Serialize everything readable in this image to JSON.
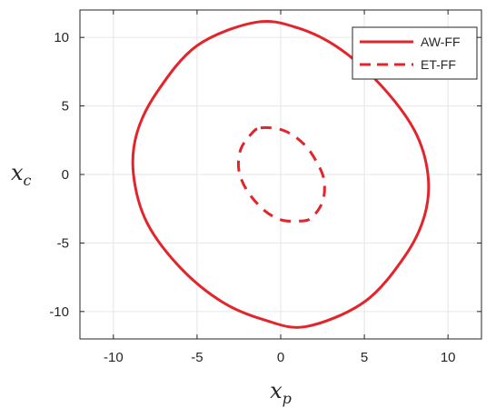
{
  "chart_data": {
    "type": "line",
    "title": "",
    "xlabel": "x",
    "xlabel_sub": "p",
    "ylabel": "x",
    "ylabel_sub": "c",
    "xlim": [
      -12,
      12
    ],
    "ylim": [
      -12,
      12
    ],
    "xticks": [
      -10,
      -5,
      0,
      5,
      10
    ],
    "xtick_labels": [
      "-10",
      "-5",
      "0",
      "5",
      "10"
    ],
    "yticks": [
      -10,
      -5,
      0,
      5,
      10
    ],
    "ytick_labels": [
      "-10",
      "-5",
      "0",
      "5",
      "10"
    ],
    "grid": true,
    "legend_position": "top-right",
    "series": [
      {
        "name": "AW-FF",
        "style": "solid",
        "color": "#e3242b",
        "x": [
          -1.5,
          1.0,
          3.5,
          6.0,
          8.0,
          8.8,
          8.6,
          7.4,
          5.0,
          1.5,
          -1.0,
          -3.5,
          -6.0,
          -8.0,
          -8.8,
          -8.6,
          -7.4,
          -5.0,
          -1.5
        ],
        "y": [
          11.1,
          10.7,
          9.2,
          6.5,
          3.2,
          0.0,
          -3.0,
          -6.0,
          -9.3,
          -11.1,
          -10.6,
          -9.3,
          -6.8,
          -3.5,
          0.0,
          3.0,
          6.0,
          9.4,
          11.1
        ]
      },
      {
        "name": "ET-FF",
        "style": "dashed",
        "color": "#e3242b",
        "x": [
          -1.2,
          0.2,
          1.4,
          2.2,
          2.6,
          2.5,
          1.8,
          1.0,
          0.0,
          -1.0,
          -2.0,
          -2.5,
          -2.4,
          -1.8,
          -1.2
        ],
        "y": [
          3.4,
          3.2,
          2.2,
          0.8,
          -0.5,
          -2.0,
          -3.2,
          -3.4,
          -3.3,
          -2.6,
          -1.2,
          0.3,
          1.8,
          2.9,
          3.4
        ]
      }
    ]
  }
}
